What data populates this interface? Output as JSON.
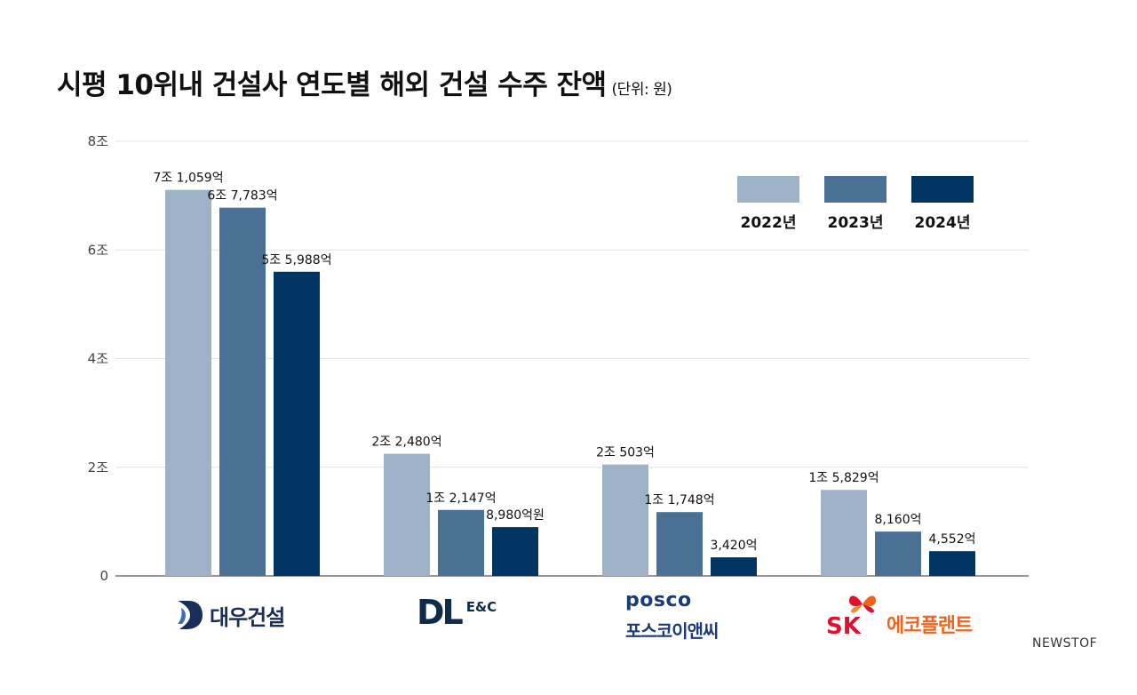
{
  "title": "시평 10위내 건설사 연도별 해외 건설 수주 잔액",
  "unit": "(단위: 원)",
  "source": "NEWSTOF",
  "logos": {
    "daewoo": "대우건설",
    "dl_mark": "DL",
    "dl_sub": "E&C",
    "posco_en": "posco",
    "posco_ko": "포스코이앤씨",
    "sk_mark": "SK",
    "sk_ko": "에코플랜트"
  },
  "chart_data": {
    "type": "bar",
    "categories": [
      "대우건설",
      "DL E&C",
      "포스코이앤씨",
      "SK에코플랜트"
    ],
    "unit_note": "조 원",
    "series": [
      {
        "name": "2022년",
        "color": "#9eb2c7",
        "values": [
          7.1059,
          2.248,
          2.0503,
          1.5829
        ],
        "labels": [
          "7조 1,059억",
          "2조 2,480억",
          "2조 503억",
          "1조 5,829억"
        ]
      },
      {
        "name": "2023년",
        "color": "#4b7095",
        "values": [
          6.7783,
          1.2147,
          1.1748,
          0.816
        ],
        "labels": [
          "6조 7,783억",
          "1조 2,147억",
          "1조 1,748억",
          "8,160억"
        ]
      },
      {
        "name": "2024년",
        "color": "#003462",
        "values": [
          5.5988,
          0.898,
          0.342,
          0.4552
        ],
        "labels": [
          "5조 5,988억",
          "8,980억원",
          "3,420억",
          "4,552억"
        ]
      }
    ],
    "ylim": [
      0,
      8
    ],
    "yticks": [
      {
        "value": 0,
        "label": "0"
      },
      {
        "value": 2,
        "label": "2조"
      },
      {
        "value": 4,
        "label": "4조"
      },
      {
        "value": 6,
        "label": "6조"
      },
      {
        "value": 8,
        "label": "8조"
      }
    ],
    "grid": true,
    "legend": "top-right"
  }
}
